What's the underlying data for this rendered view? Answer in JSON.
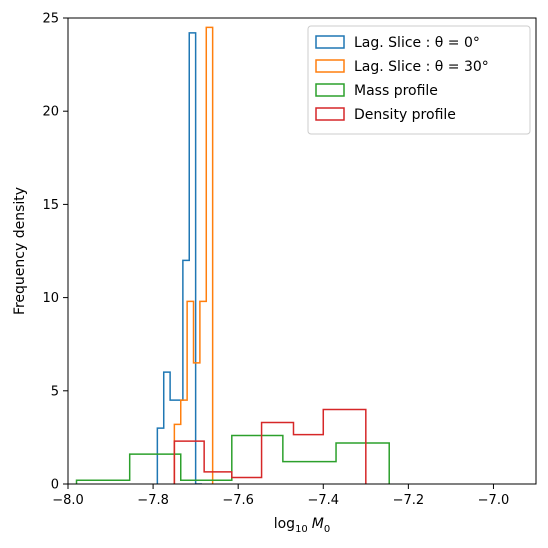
{
  "chart_data": {
    "type": "histogram",
    "xlabel_base": "log",
    "xlabel_sub": "10",
    "xlabel_var": "M",
    "xlabel_var_sub": "0",
    "ylabel": "Frequency density",
    "xlim": [
      -8.0,
      -6.9
    ],
    "ylim": [
      0,
      25
    ],
    "xticks": [
      -8.0,
      -7.8,
      -7.6,
      -7.4,
      -7.2,
      -7.0
    ],
    "xtick_labels": [
      "−8.0",
      "−7.8",
      "−7.6",
      "−7.4",
      "−7.2",
      "−7.0"
    ],
    "yticks": [
      0,
      5,
      10,
      15,
      20,
      25
    ],
    "ytick_labels": [
      "0",
      "5",
      "10",
      "15",
      "20",
      "25"
    ],
    "legend_position": "top-right",
    "series": [
      {
        "name": "Lag. Slice : θ = 0°",
        "color": "#1f77b4",
        "edges": [
          -7.79,
          -7.775,
          -7.76,
          -7.745,
          -7.73,
          -7.715,
          -7.7,
          -7.685
        ],
        "values": [
          3.0,
          6.0,
          4.5,
          4.5,
          12.0,
          24.2,
          0.0
        ]
      },
      {
        "name": "Lag. Slice : θ = 30°",
        "color": "#ff7f0e",
        "edges": [
          -7.75,
          -7.735,
          -7.72,
          -7.705,
          -7.69,
          -7.675,
          -7.66
        ],
        "values": [
          3.2,
          4.5,
          9.8,
          6.5,
          9.8,
          24.5
        ]
      },
      {
        "name": "Mass profile",
        "color": "#2ca02c",
        "edges": [
          -7.98,
          -7.855,
          -7.735,
          -7.615,
          -7.495,
          -7.37,
          -7.245
        ],
        "values": [
          0.2,
          1.6,
          0.2,
          2.6,
          1.2,
          2.2
        ]
      },
      {
        "name": "Density profile",
        "color": "#d62728",
        "edges": [
          -7.75,
          -7.68,
          -7.615,
          -7.545,
          -7.47,
          -7.4,
          -7.3
        ],
        "values": [
          2.3,
          0.65,
          0.35,
          3.3,
          2.65,
          4.0
        ]
      }
    ]
  }
}
